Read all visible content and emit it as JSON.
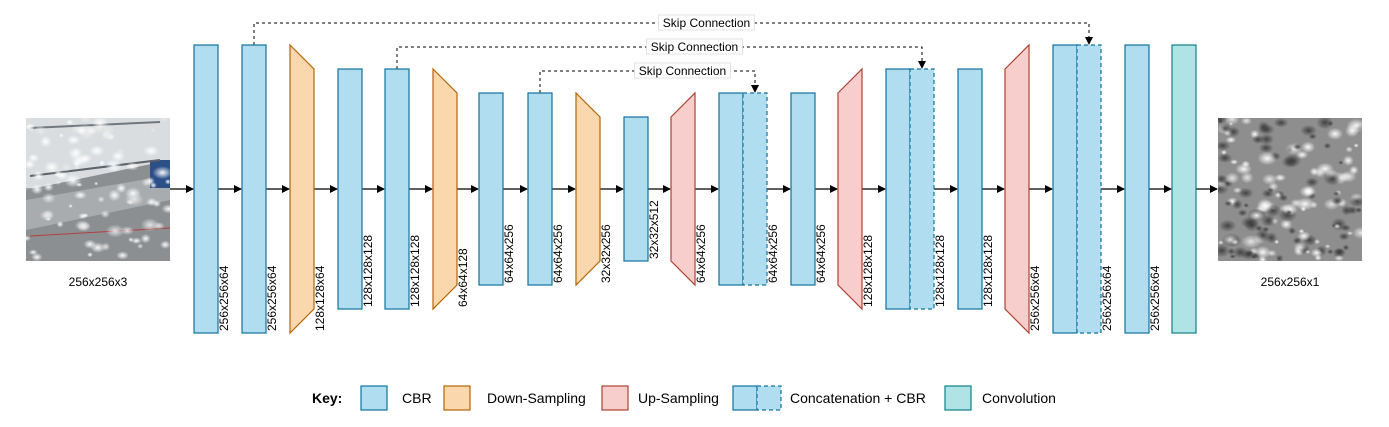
{
  "input": {
    "label": "256x256x3"
  },
  "output": {
    "label": "256x256x1"
  },
  "blocks": [
    {
      "type": "cbr",
      "label": "256x256x64"
    },
    {
      "type": "cbr",
      "label": "256x256x64"
    },
    {
      "type": "down",
      "label": "128x128x64"
    },
    {
      "type": "cbr",
      "label": "128x128x128"
    },
    {
      "type": "cbr",
      "label": "128x128x128"
    },
    {
      "type": "down",
      "label": "64x64x128"
    },
    {
      "type": "cbr",
      "label": "64x64x256"
    },
    {
      "type": "cbr",
      "label": "64x64x256"
    },
    {
      "type": "down",
      "label": "32x32x256"
    },
    {
      "type": "cbr",
      "label": "32x32x512"
    },
    {
      "type": "up",
      "label": "64x64x256"
    },
    {
      "type": "concat",
      "label": "64x64x256"
    },
    {
      "type": "cbr",
      "label": "64x64x256"
    },
    {
      "type": "up",
      "label": "128x128x128"
    },
    {
      "type": "concat",
      "label": "128x128x128"
    },
    {
      "type": "cbr",
      "label": "128x128x128"
    },
    {
      "type": "up",
      "label": "256x256x64"
    },
    {
      "type": "concat",
      "label": "256x256x64"
    },
    {
      "type": "cbr",
      "label": "256x256x64"
    },
    {
      "type": "conv",
      "label": ""
    }
  ],
  "skip_connections": [
    {
      "label": "Skip Connection",
      "from": 1,
      "to": 17
    },
    {
      "label": "Skip Connection",
      "from": 4,
      "to": 14
    },
    {
      "label": "Skip Connection",
      "from": 7,
      "to": 11
    }
  ],
  "key": {
    "title": "Key:",
    "items": [
      {
        "type": "cbr",
        "label": "CBR"
      },
      {
        "type": "down",
        "label": "Down-Sampling"
      },
      {
        "type": "up",
        "label": "Up-Sampling"
      },
      {
        "type": "concat",
        "label": "Concatenation + CBR"
      },
      {
        "type": "conv",
        "label": "Convolution"
      }
    ]
  }
}
